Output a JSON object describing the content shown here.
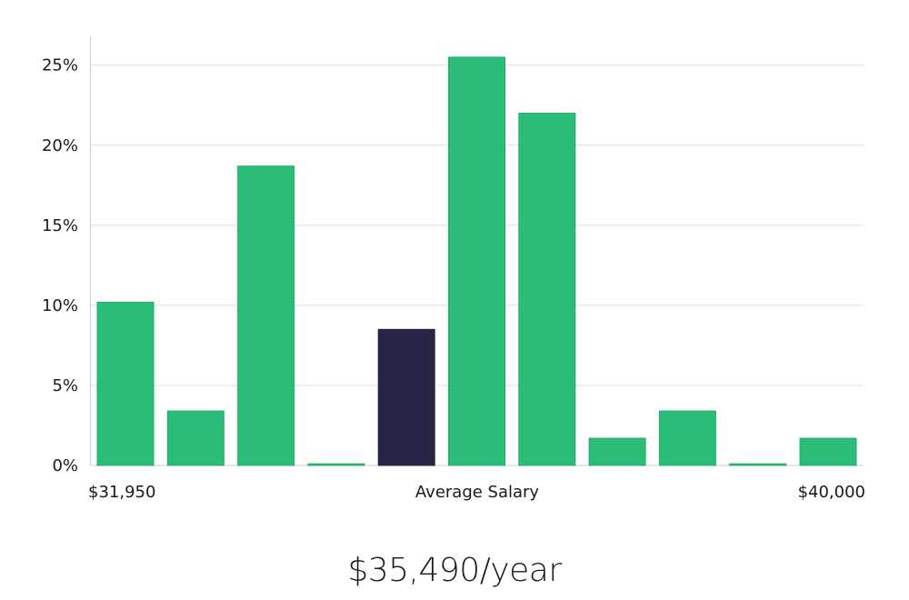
{
  "chart_data": {
    "type": "bar",
    "title": "",
    "xlabel": "Average Salary",
    "ylabel": "",
    "x_min_label": "$31,950",
    "x_max_label": "$40,000",
    "y_unit": "%",
    "ylim": [
      0,
      26.8
    ],
    "y_ticks": [
      0,
      5,
      10,
      15,
      20,
      25
    ],
    "y_tick_labels": [
      "0%",
      "5%",
      "10%",
      "15%",
      "20%",
      "25%"
    ],
    "grid": true,
    "values": [
      10.2,
      3.4,
      18.7,
      0.1,
      8.5,
      25.5,
      22.0,
      1.7,
      3.4,
      0.1,
      1.7
    ],
    "highlight_index": 4,
    "colors": {
      "bar": "#2bbd77",
      "bar_stroke": "#1fae68",
      "highlight": "#272546",
      "grid": "#dddddd",
      "axis": "#cccccc"
    }
  },
  "salary_text": "$35,490/year"
}
